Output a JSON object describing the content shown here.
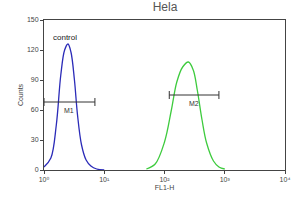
{
  "chart_data": {
    "type": "histogram",
    "title": "Hela",
    "x_label": "FL1-H",
    "y_label": "Counts",
    "log": "x",
    "grid": false,
    "xlim": [
      1,
      10000
    ],
    "xticks": [
      {
        "value": 1,
        "label": "10⁰"
      },
      {
        "value": 10,
        "label": "10¹"
      },
      {
        "value": 100,
        "label": "10²"
      },
      {
        "value": 1000,
        "label": "10³"
      },
      {
        "value": 10000,
        "label": "10⁴"
      }
    ],
    "ylim": [
      0,
      150
    ],
    "yticks": [
      0,
      30,
      60,
      90,
      120,
      150
    ],
    "series": [
      {
        "color": "#2b2bb8",
        "x": [
          1,
          1.3,
          1.6,
          1.9,
          2.2,
          2.5,
          2.8,
          3.2,
          3.6,
          4.2,
          5,
          6,
          7.5,
          10
        ],
        "values": [
          3,
          12,
          45,
          95,
          120,
          126,
          118,
          90,
          55,
          25,
          10,
          4,
          1,
          0
        ]
      },
      {
        "color": "#3ecb3e",
        "x": [
          50,
          70,
          100,
          130,
          160,
          200,
          250,
          300,
          350,
          420,
          500,
          650,
          800,
          1000
        ],
        "values": [
          1,
          6,
          28,
          60,
          88,
          103,
          108,
          100,
          80,
          50,
          27,
          9,
          3,
          1
        ]
      }
    ],
    "gates": [
      {
        "label": "M1",
        "x": [
          1,
          7
        ],
        "y": 68
      },
      {
        "label": "M2",
        "x": [
          120,
          800
        ],
        "y": 75
      }
    ],
    "annotations": [
      {
        "text": "control",
        "x": 2.2,
        "y": 133
      }
    ]
  }
}
